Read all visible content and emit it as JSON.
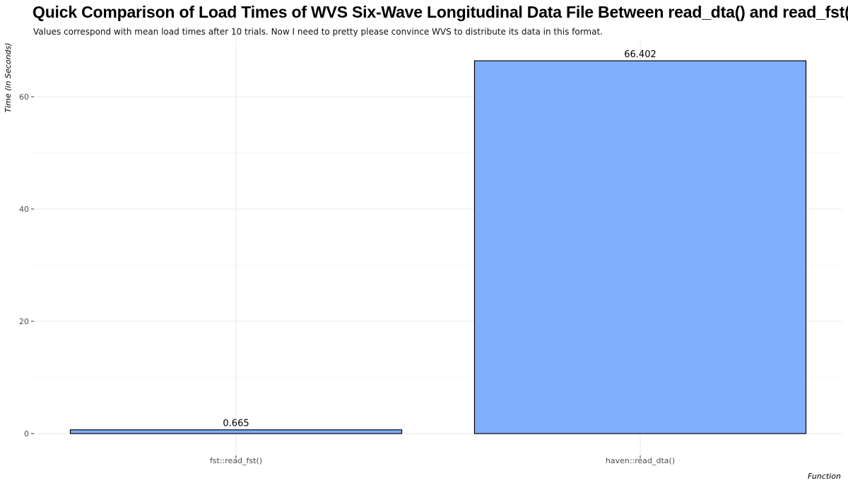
{
  "chart_data": {
    "type": "bar",
    "title": "Quick Comparison of Load Times of WVS Six-Wave Longitudinal Data File Between read_dta() and read_fst()",
    "subtitle": "Values correspond with mean load times after 10 trials. Now I need to pretty please convince WVS to distribute its data in this format.",
    "xlabel": "Function",
    "ylabel": "Time (in Seconds)",
    "categories": [
      "fst::read_fst()",
      "haven::read_dta()"
    ],
    "values": [
      0.665,
      66.402
    ],
    "data_labels": [
      "0.665",
      "66.402"
    ],
    "ylim": [
      0,
      70
    ],
    "yticks": [
      0,
      20,
      40,
      60
    ],
    "ytick_labels": [
      "0",
      "20",
      "40",
      "60"
    ],
    "grid": true,
    "legend": "none",
    "colors": {
      "bar_fill": "#80AFFF",
      "bar_stroke": "#000000",
      "grid": "#EBEBEB"
    }
  }
}
